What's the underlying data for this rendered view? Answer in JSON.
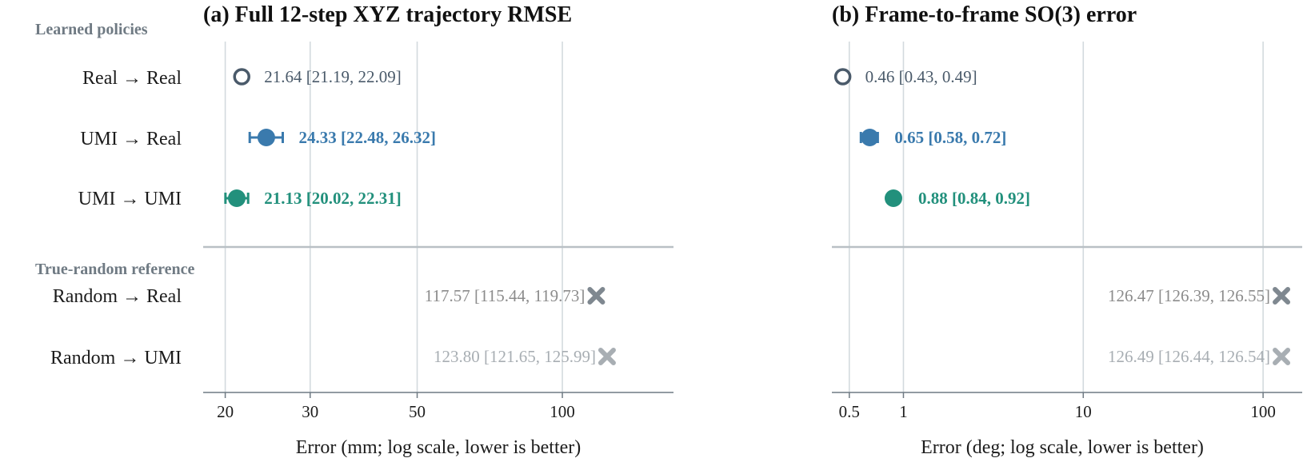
{
  "chart_data": [
    {
      "type": "scatter",
      "title": "(a) Full 12-step XYZ trajectory RMSE",
      "xlabel": "Error (mm; log scale, lower is better)",
      "xscale": "log",
      "xlim": [
        18,
        170
      ],
      "xticks": [
        20,
        30,
        50,
        100
      ],
      "xtick_labels": [
        "20",
        "30",
        "50",
        "100"
      ],
      "grid": true,
      "series": [
        {
          "label": "Real → Real",
          "value": 21.64,
          "ci": [
            21.19,
            22.09
          ],
          "text": "21.64 [21.19, 22.09]"
        },
        {
          "label": "UMI → Real",
          "value": 24.33,
          "ci": [
            22.48,
            26.32
          ],
          "text": "24.33 [22.48, 26.32]"
        },
        {
          "label": "UMI → UMI",
          "value": 21.13,
          "ci": [
            20.02,
            22.31
          ],
          "text": "21.13 [20.02, 22.31]"
        },
        {
          "label": "Random → Real",
          "value": 117.57,
          "ci": [
            115.44,
            119.73
          ],
          "text": "117.57 [115.44, 119.73]"
        },
        {
          "label": "Random → UMI",
          "value": 123.8,
          "ci": [
            121.65,
            125.99
          ],
          "text": "123.80 [121.65, 125.99]"
        }
      ]
    },
    {
      "type": "scatter",
      "title": "(b) Frame-to-frame SO(3) error",
      "xlabel": "Error (deg; log scale, lower is better)",
      "xscale": "log",
      "xlim": [
        0.4,
        165
      ],
      "xticks": [
        0.5,
        1,
        10,
        100
      ],
      "xtick_labels": [
        "0.5",
        "1",
        "10",
        "100"
      ],
      "grid": true,
      "series": [
        {
          "label": "Real → Real",
          "value": 0.46,
          "ci": [
            0.43,
            0.49
          ],
          "text": "0.46 [0.43, 0.49]"
        },
        {
          "label": "UMI → Real",
          "value": 0.65,
          "ci": [
            0.58,
            0.72
          ],
          "text": "0.65 [0.58, 0.72]"
        },
        {
          "label": "UMI → UMI",
          "value": 0.88,
          "ci": [
            0.84,
            0.92
          ],
          "text": "0.88 [0.84, 0.92]"
        },
        {
          "label": "Random → Real",
          "value": 126.47,
          "ci": [
            126.39,
            126.55
          ],
          "text": "126.47 [126.39, 126.55]"
        },
        {
          "label": "Random → UMI",
          "value": 126.49,
          "ci": [
            126.44,
            126.54
          ],
          "text": "126.49 [126.44, 126.54]"
        }
      ]
    }
  ],
  "groups": {
    "learned": "Learned policies",
    "reference": "True-random reference"
  },
  "rows": [
    "Real → Real",
    "UMI → Real",
    "UMI → UMI",
    "Random → Real",
    "Random → UMI"
  ],
  "row_styles": [
    {
      "marker": "open-circle",
      "color": "#4a5a6a",
      "text_color": "#4a5a6a",
      "bold": false
    },
    {
      "marker": "filled-circle",
      "color": "#3a7aad",
      "text_color": "#3a7aad",
      "bold": true
    },
    {
      "marker": "filled-circle",
      "color": "#22907c",
      "text_color": "#22907c",
      "bold": true
    },
    {
      "marker": "x",
      "color": "#7f8890",
      "text_color": "#8c8c8c",
      "bold": false
    },
    {
      "marker": "x",
      "color": "#a8aeb3",
      "text_color": "#a8aeb3",
      "bold": false
    }
  ],
  "colors": {
    "grid": "#d3dade",
    "axis": "#6f7a83",
    "divider": "#b9c0c5"
  }
}
